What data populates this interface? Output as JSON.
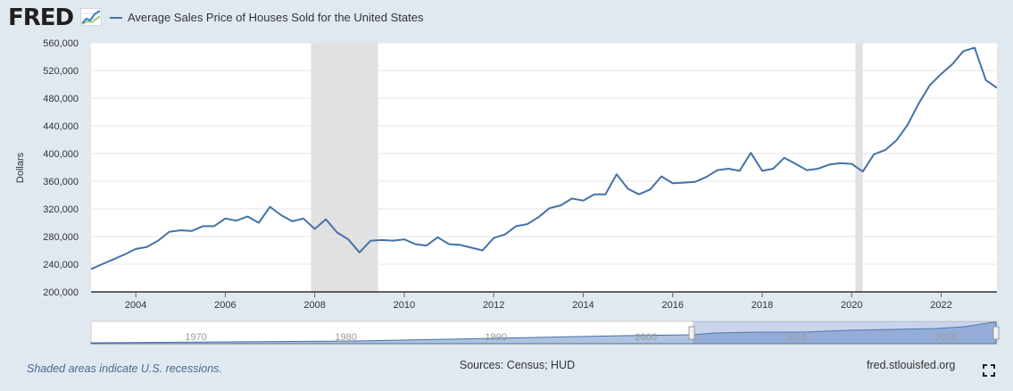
{
  "header": {
    "logo_text": "FRED",
    "series_title": "Average Sales Price of Houses Sold for the United States"
  },
  "colors": {
    "series": "#4572a7",
    "recession": "#e1e1e1",
    "background": "#e1e9f0",
    "plot": "#ffffff",
    "navigator_fill": "#aec3e0"
  },
  "icons": {
    "logo_icon": "chart-trend-icon",
    "fullscreen": "fullscreen-icon"
  },
  "chart_data": {
    "type": "line",
    "title": "",
    "xlabel": "",
    "ylabel": "Dollars",
    "xlim": [
      "2003-01-01",
      "2023-04-01"
    ],
    "ylim": [
      200000,
      560000
    ],
    "yticks": [
      200000,
      240000,
      280000,
      320000,
      360000,
      400000,
      440000,
      480000,
      520000,
      560000
    ],
    "ytick_labels": [
      "200,000",
      "240,000",
      "280,000",
      "320,000",
      "360,000",
      "400,000",
      "440,000",
      "480,000",
      "520,000",
      "560,000"
    ],
    "xticks": [
      "2004",
      "2006",
      "2008",
      "2010",
      "2012",
      "2014",
      "2016",
      "2018",
      "2020",
      "2022"
    ],
    "grid": true,
    "legend": "top-left",
    "recessions": [
      {
        "start": "2007-12-01",
        "end": "2009-06-01"
      },
      {
        "start": "2020-02-01",
        "end": "2020-04-01"
      }
    ],
    "series": [
      {
        "name": "Average Sales Price of Houses Sold for the United States",
        "x": [
          "2003-01-01",
          "2003-04-01",
          "2003-07-01",
          "2003-10-01",
          "2004-01-01",
          "2004-04-01",
          "2004-07-01",
          "2004-10-01",
          "2005-01-01",
          "2005-04-01",
          "2005-07-01",
          "2005-10-01",
          "2006-01-01",
          "2006-04-01",
          "2006-07-01",
          "2006-10-01",
          "2007-01-01",
          "2007-04-01",
          "2007-07-01",
          "2007-10-01",
          "2008-01-01",
          "2008-04-01",
          "2008-07-01",
          "2008-10-01",
          "2009-01-01",
          "2009-04-01",
          "2009-07-01",
          "2009-10-01",
          "2010-01-01",
          "2010-04-01",
          "2010-07-01",
          "2010-10-01",
          "2011-01-01",
          "2011-04-01",
          "2011-07-01",
          "2011-10-01",
          "2012-01-01",
          "2012-04-01",
          "2012-07-01",
          "2012-10-01",
          "2013-01-01",
          "2013-04-01",
          "2013-07-01",
          "2013-10-01",
          "2014-01-01",
          "2014-04-01",
          "2014-07-01",
          "2014-10-01",
          "2015-01-01",
          "2015-04-01",
          "2015-07-01",
          "2015-10-01",
          "2016-01-01",
          "2016-04-01",
          "2016-07-01",
          "2016-10-01",
          "2017-01-01",
          "2017-04-01",
          "2017-07-01",
          "2017-10-01",
          "2018-01-01",
          "2018-04-01",
          "2018-07-01",
          "2018-10-01",
          "2019-01-01",
          "2019-04-01",
          "2019-07-01",
          "2019-10-01",
          "2020-01-01",
          "2020-04-01",
          "2020-07-01",
          "2020-10-01",
          "2021-01-01",
          "2021-04-01",
          "2021-07-01",
          "2021-10-01",
          "2022-01-01",
          "2022-04-01",
          "2022-07-01",
          "2022-10-01",
          "2023-01-01",
          "2023-04-01"
        ],
        "values": [
          233000,
          240000,
          247000,
          254000,
          262000,
          265000,
          274000,
          287000,
          289000,
          288000,
          295000,
          295000,
          306000,
          303000,
          309000,
          300000,
          323000,
          311000,
          302000,
          306000,
          291000,
          305000,
          286000,
          276000,
          257000,
          274000,
          275000,
          274000,
          276000,
          269000,
          267000,
          279000,
          269000,
          268000,
          264000,
          260000,
          278000,
          283000,
          295000,
          298000,
          308000,
          321000,
          325000,
          335000,
          332000,
          341000,
          341000,
          370000,
          349000,
          341000,
          348000,
          367000,
          357000,
          358000,
          359000,
          366000,
          376000,
          378000,
          375000,
          401000,
          375000,
          378000,
          394000,
          385000,
          376000,
          378000,
          384000,
          386000,
          385000,
          374000,
          399000,
          405000,
          419000,
          441000,
          472000,
          499000,
          515000,
          529000,
          548000,
          553000,
          506000,
          495000
        ]
      }
    ]
  },
  "navigator": {
    "year_labels": [
      "1970",
      "1980",
      "1990",
      "2000",
      "2010",
      "2020"
    ]
  },
  "footer": {
    "recession_note": "Shaded areas indicate U.S. recessions.",
    "sources": "Sources: Census; HUD",
    "site": "fred.stlouisfed.org"
  }
}
